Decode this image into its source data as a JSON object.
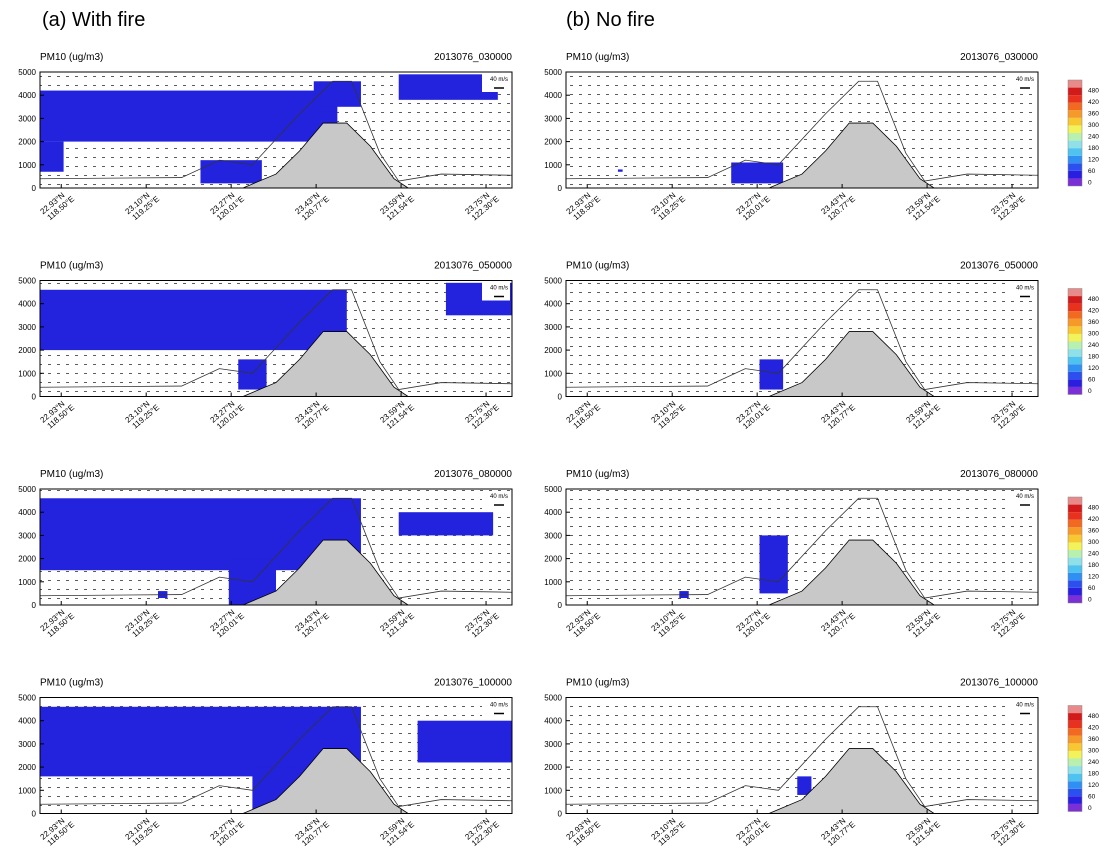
{
  "header": {
    "left": "(a)    With fire",
    "right": "(b) No fire"
  },
  "colorbar": {
    "ticks": [
      0,
      60,
      120,
      180,
      240,
      300,
      360,
      420,
      480
    ],
    "colors": [
      "#7b2fd6",
      "#2a1fe0",
      "#2c4ff0",
      "#2f8ff2",
      "#4fc3f0",
      "#8fe0e8",
      "#b8f0b0",
      "#f2f25a",
      "#f7c832",
      "#f59a28",
      "#f26a1f",
      "#e8321e",
      "#d21a1a",
      "#e88a8a"
    ]
  },
  "chart_data": [
    {
      "type": "cross-section",
      "title": "PM10 (ug/m3)",
      "subtitle": "2013076_030000",
      "annotation": "40 m/s",
      "ylim": [
        0,
        5000
      ],
      "yticks": [
        0,
        1000,
        2000,
        3000,
        4000,
        5000
      ],
      "lat_labels": [
        "22.93°N",
        "23.10°N",
        "23.27°N",
        "23.43°N",
        "23.59°N",
        "23.75°N"
      ],
      "lon_labels": [
        "118.50°E",
        "119.25°E",
        "120.01°E",
        "120.77°E",
        "121.54°E",
        "122.30°E"
      ]
    },
    {
      "type": "cross-section",
      "title": "PM10 (ug/m3)",
      "subtitle": "2013076_030000",
      "annotation": "40 m/s",
      "ylim": [
        0,
        5000
      ],
      "yticks": [
        0,
        1000,
        2000,
        3000,
        4000,
        5000
      ],
      "lat_labels": [
        "22.93°N",
        "23.10°N",
        "23.27°N",
        "23.43°N",
        "23.59°N",
        "23.75°N"
      ],
      "lon_labels": [
        "118.50°E",
        "119.25°E",
        "120.01°E",
        "120.77°E",
        "121.54°E",
        "122.30°E"
      ]
    },
    {
      "type": "cross-section",
      "title": "PM10 (ug/m3)",
      "subtitle": "2013076_050000",
      "annotation": "40 m/s",
      "ylim": [
        0,
        5000
      ],
      "yticks": [
        0,
        1000,
        2000,
        3000,
        4000,
        5000
      ],
      "lat_labels": [
        "22.93°N",
        "23.10°N",
        "23.27°N",
        "23.43°N",
        "23.59°N",
        "23.75°N"
      ],
      "lon_labels": [
        "118.50°E",
        "119.25°E",
        "120.01°E",
        "120.77°E",
        "121.54°E",
        "122.30°E"
      ]
    },
    {
      "type": "cross-section",
      "title": "PM10 (ug/m3)",
      "subtitle": "2013076_050000",
      "annotation": "40 m/s",
      "ylim": [
        0,
        5000
      ],
      "yticks": [
        0,
        1000,
        2000,
        3000,
        4000,
        5000
      ],
      "lat_labels": [
        "22.93°N",
        "23.10°N",
        "23.27°N",
        "23.43°N",
        "23.59°N",
        "23.75°N"
      ],
      "lon_labels": [
        "118.50°E",
        "119.25°E",
        "120.01°E",
        "120.77°E",
        "121.54°E",
        "122.30°E"
      ]
    },
    {
      "type": "cross-section",
      "title": "PM10 (ug/m3)",
      "subtitle": "2013076_080000",
      "annotation": "40 m/s",
      "ylim": [
        0,
        5000
      ],
      "yticks": [
        0,
        1000,
        2000,
        3000,
        4000,
        5000
      ],
      "lat_labels": [
        "22.93°N",
        "23.10°N",
        "23.27°N",
        "23.43°N",
        "23.59°N",
        "23.75°N"
      ],
      "lon_labels": [
        "118.50°E",
        "119.25°E",
        "120.01°E",
        "120.77°E",
        "121.54°E",
        "122.30°E"
      ]
    },
    {
      "type": "cross-section",
      "title": "PM10 (ug/m3)",
      "subtitle": "2013076_080000",
      "annotation": "40 m/s",
      "ylim": [
        0,
        5000
      ],
      "yticks": [
        0,
        1000,
        2000,
        3000,
        4000,
        5000
      ],
      "lat_labels": [
        "22.93°N",
        "23.10°N",
        "23.27°N",
        "23.43°N",
        "23.59°N",
        "23.75°N"
      ],
      "lon_labels": [
        "118.50°E",
        "119.25°E",
        "120.01°E",
        "120.77°E",
        "121.54°E",
        "122.30°E"
      ]
    },
    {
      "type": "cross-section",
      "title": "PM10 (ug/m3)",
      "subtitle": "2013076_100000",
      "annotation": "40 m/s",
      "ylim": [
        0,
        5000
      ],
      "yticks": [
        0,
        1000,
        2000,
        3000,
        4000,
        5000
      ],
      "lat_labels": [
        "22.93°N",
        "23.10°N",
        "23.27°N",
        "23.43°N",
        "23.59°N",
        "23.75°N"
      ],
      "lon_labels": [
        "118.50°E",
        "119.25°E",
        "120.01°E",
        "120.77°E",
        "121.54°E",
        "122.30°E"
      ]
    },
    {
      "type": "cross-section",
      "title": "PM10 (ug/m3)",
      "subtitle": "2013076_100000",
      "annotation": "40 m/s",
      "ylim": [
        0,
        5000
      ],
      "yticks": [
        0,
        1000,
        2000,
        3000,
        4000,
        5000
      ],
      "lat_labels": [
        "22.93°N",
        "23.10°N",
        "23.27°N",
        "23.43°N",
        "23.59°N",
        "23.75°N"
      ],
      "lon_labels": [
        "118.50°E",
        "119.25°E",
        "120.01°E",
        "120.77°E",
        "121.54°E",
        "122.30°E"
      ]
    }
  ]
}
